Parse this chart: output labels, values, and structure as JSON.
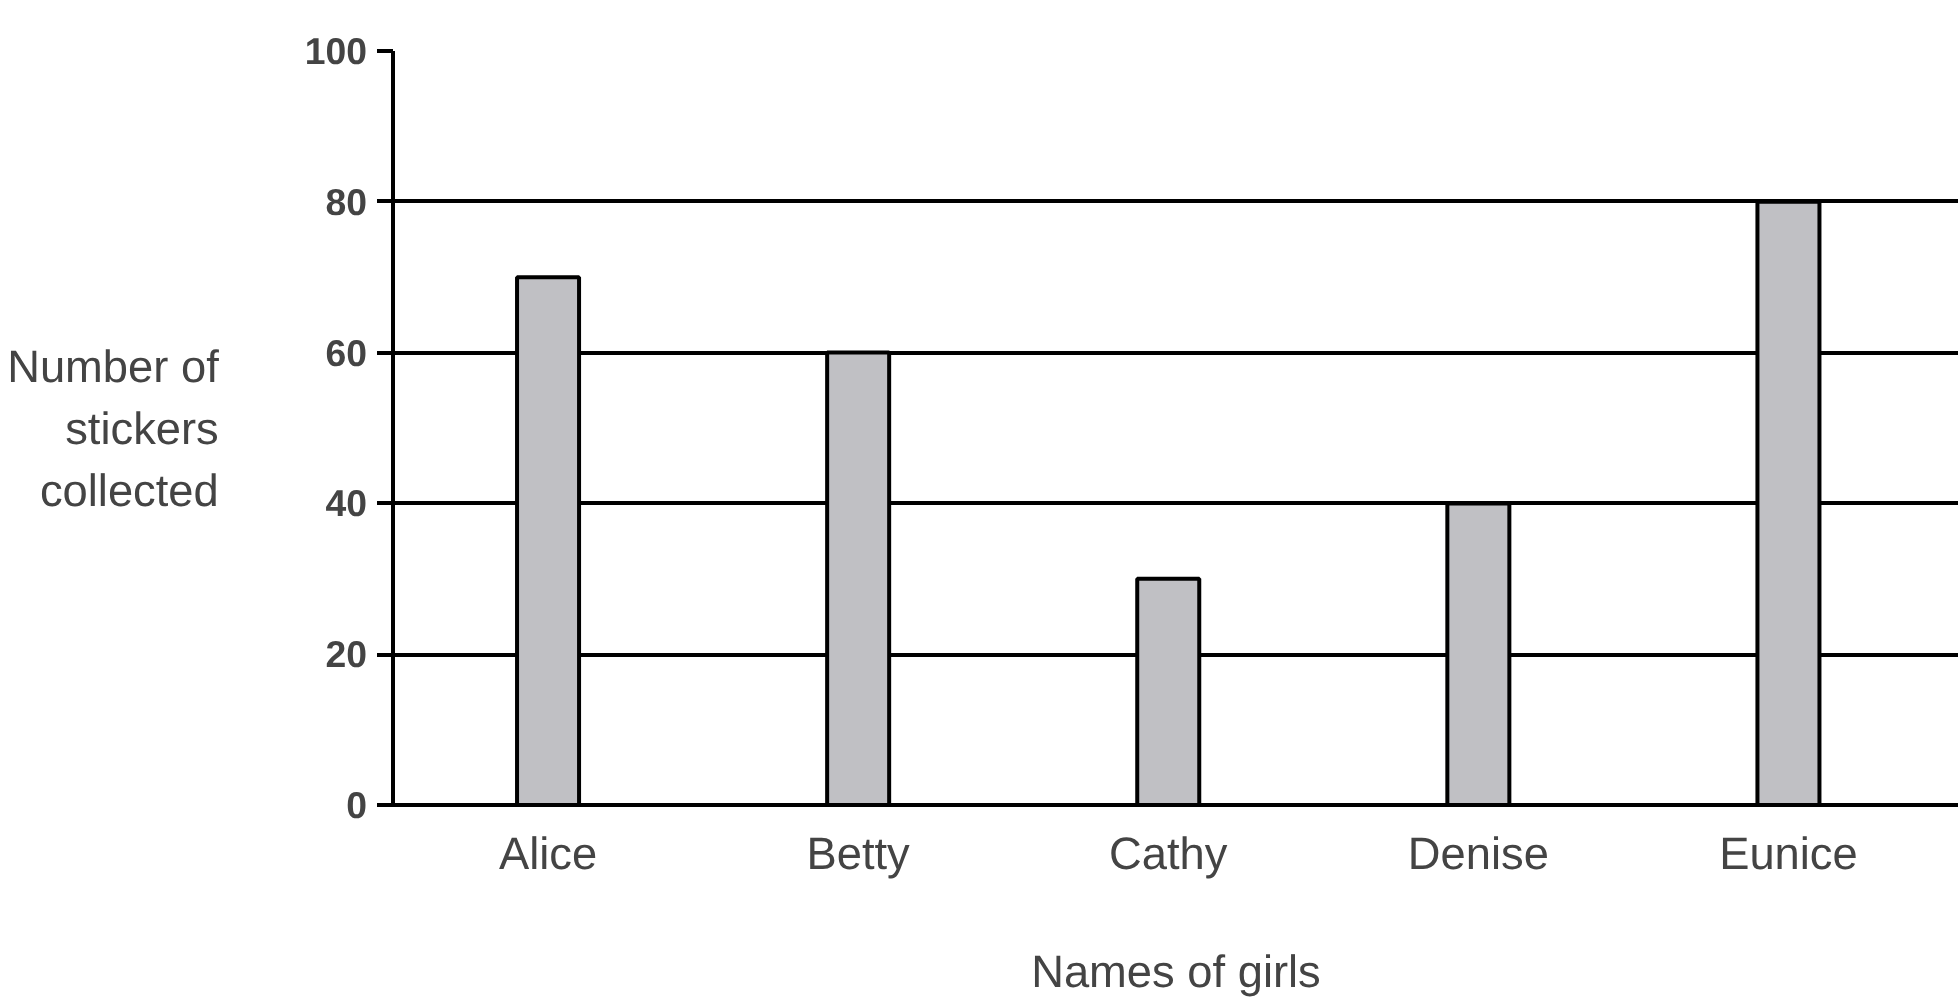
{
  "chart_data": {
    "type": "bar",
    "xlabel": "Names of girls",
    "ylabel": "Number of stickers collected",
    "categories": [
      "Alice",
      "Betty",
      "Cathy",
      "Denise",
      "Eunice"
    ],
    "values": [
      70,
      60,
      30,
      40,
      80
    ],
    "color": "#c0c0c4",
    "ylim": [
      0,
      100
    ],
    "yticks": [
      0,
      20,
      40,
      60,
      80,
      100
    ],
    "grid": "y"
  }
}
